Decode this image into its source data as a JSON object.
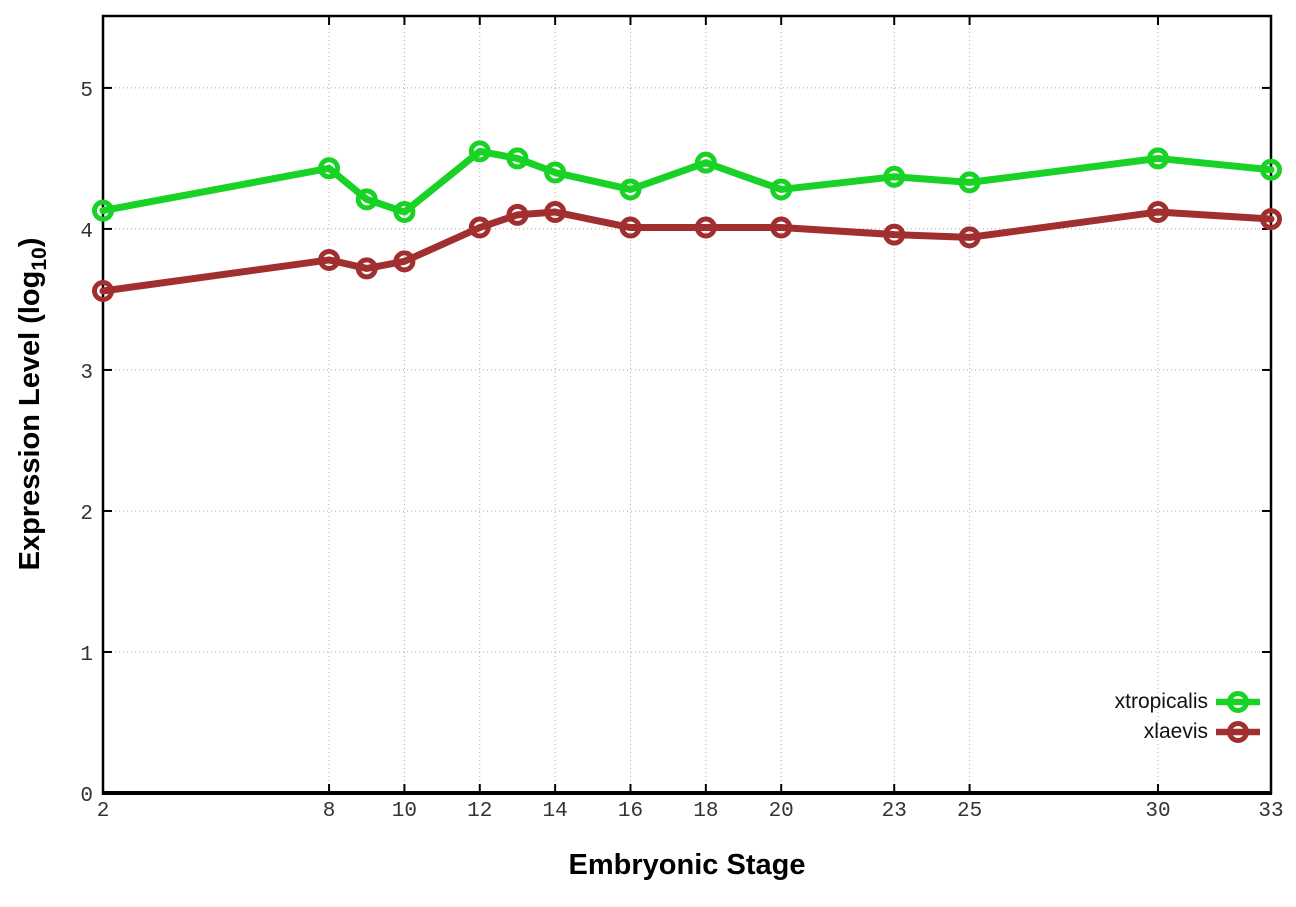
{
  "figure": {
    "background": "#ffffff"
  },
  "chart_data": {
    "type": "line",
    "title": "",
    "xlabel": "Embryonic Stage",
    "ylabel": "Expression Level (log10)",
    "ylabel_rich": {
      "prefix": "Expression Level (log",
      "subscript": "10",
      "suffix": ")"
    },
    "x": [
      2,
      8,
      9,
      10,
      12,
      13,
      14,
      16,
      18,
      20,
      23,
      25,
      30,
      33
    ],
    "series": [
      {
        "name": "xtropicalis",
        "color": "#18d225",
        "values": [
          4.13,
          4.43,
          4.21,
          4.12,
          4.55,
          4.5,
          4.4,
          4.28,
          4.47,
          4.28,
          4.37,
          4.33,
          4.5,
          4.42
        ]
      },
      {
        "name": "xlaevis",
        "color": "#a12f2f",
        "values": [
          3.56,
          3.78,
          3.72,
          3.77,
          4.01,
          4.1,
          4.12,
          4.01,
          4.01,
          4.01,
          3.96,
          3.94,
          4.12,
          4.07
        ]
      }
    ],
    "xticks": [
      2,
      8,
      10,
      12,
      14,
      16,
      18,
      20,
      23,
      25,
      30,
      33
    ],
    "yticks": [
      0,
      1,
      2,
      3,
      4,
      5
    ],
    "xlim": [
      2,
      33
    ],
    "ylim": [
      0,
      5.51
    ],
    "grid": true,
    "legend_position": "bottom-right",
    "marker": "open-circle",
    "grid_color": "#aaaaaa",
    "tick_label_color": "#333333"
  }
}
